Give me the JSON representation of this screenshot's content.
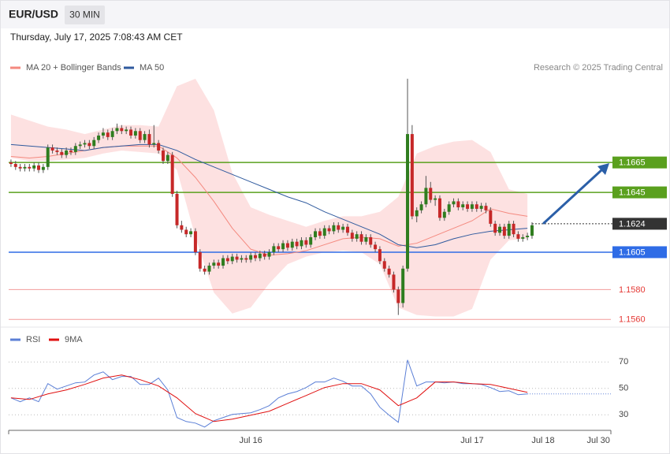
{
  "header": {
    "symbol": "EUR/USD",
    "interval": "30 MIN",
    "timestamp": "Thursday, July 17, 2025 7:08:43 AM CET",
    "source": "Research © 2025 Trading Central"
  },
  "chart_data": [
    {
      "type": "candlestick",
      "xlim": [
        -0.5,
        130.1
      ],
      "ylim": [
        1.1557,
        1.1722
      ],
      "up_color": "#2f7d1f",
      "down_color": "#c62828",
      "ohlc": [
        [
          1.1665,
          1.1667,
          1.1662,
          1.1664
        ],
        [
          1.1664,
          1.1666,
          1.166,
          1.1662
        ],
        [
          1.1662,
          1.1664,
          1.1659,
          1.1661
        ],
        [
          1.1661,
          1.1664,
          1.1659,
          1.1662
        ],
        [
          1.1662,
          1.1664,
          1.1659,
          1.1661
        ],
        [
          1.1661,
          1.1665,
          1.1659,
          1.1663
        ],
        [
          1.1663,
          1.1665,
          1.1658,
          1.166
        ],
        [
          1.166,
          1.1664,
          1.1658,
          1.1662
        ],
        [
          1.1662,
          1.1677,
          1.166,
          1.1675
        ],
        [
          1.1675,
          1.1677,
          1.1671,
          1.1673
        ],
        [
          1.1673,
          1.1675,
          1.167,
          1.1672
        ],
        [
          1.1672,
          1.1674,
          1.1668,
          1.167
        ],
        [
          1.167,
          1.1675,
          1.1668,
          1.1673
        ],
        [
          1.1673,
          1.1675,
          1.167,
          1.1672
        ],
        [
          1.1672,
          1.1678,
          1.167,
          1.1676
        ],
        [
          1.1676,
          1.1679,
          1.1674,
          1.1677
        ],
        [
          1.1677,
          1.168,
          1.1675,
          1.1678
        ],
        [
          1.1678,
          1.168,
          1.1674,
          1.1676
        ],
        [
          1.1676,
          1.1682,
          1.1674,
          1.168
        ],
        [
          1.168,
          1.1685,
          1.1678,
          1.1683
        ],
        [
          1.1683,
          1.1688,
          1.1681,
          1.1685
        ],
        [
          1.1685,
          1.1687,
          1.168,
          1.1682
        ],
        [
          1.1682,
          1.1688,
          1.168,
          1.1686
        ],
        [
          1.1686,
          1.1691,
          1.1684,
          1.1688
        ],
        [
          1.1688,
          1.169,
          1.1684,
          1.1686
        ],
        [
          1.1686,
          1.1689,
          1.1684,
          1.1687
        ],
        [
          1.1687,
          1.1689,
          1.1681,
          1.1683
        ],
        [
          1.1683,
          1.1688,
          1.1681,
          1.1686
        ],
        [
          1.1686,
          1.1688,
          1.1678,
          1.168
        ],
        [
          1.168,
          1.1686,
          1.1678,
          1.1684
        ],
        [
          1.1684,
          1.1687,
          1.1675,
          1.1677
        ],
        [
          1.1677,
          1.169,
          1.1675,
          1.1678
        ],
        [
          1.1678,
          1.168,
          1.1671,
          1.1673
        ],
        [
          1.1673,
          1.1675,
          1.1664,
          1.1666
        ],
        [
          1.1666,
          1.1672,
          1.1664,
          1.167
        ],
        [
          1.167,
          1.1672,
          1.1642,
          1.1644
        ],
        [
          1.1644,
          1.1646,
          1.1621,
          1.1623
        ],
        [
          1.1623,
          1.1626,
          1.1618,
          1.162
        ],
        [
          1.162,
          1.1622,
          1.1615,
          1.1617
        ],
        [
          1.1617,
          1.1621,
          1.1615,
          1.1619
        ],
        [
          1.1619,
          1.1621,
          1.1603,
          1.1605
        ],
        [
          1.1605,
          1.1607,
          1.1592,
          1.1594
        ],
        [
          1.1594,
          1.1596,
          1.159,
          1.1592
        ],
        [
          1.1592,
          1.1598,
          1.159,
          1.1596
        ],
        [
          1.1596,
          1.16,
          1.1594,
          1.1598
        ],
        [
          1.1598,
          1.16,
          1.1594,
          1.1596
        ],
        [
          1.1596,
          1.1603,
          1.1594,
          1.1601
        ],
        [
          1.1601,
          1.1603,
          1.1597,
          1.1599
        ],
        [
          1.1599,
          1.1604,
          1.1597,
          1.1602
        ],
        [
          1.1602,
          1.1604,
          1.1598,
          1.16
        ],
        [
          1.16,
          1.1603,
          1.1598,
          1.1601
        ],
        [
          1.1601,
          1.1603,
          1.1598,
          1.16
        ],
        [
          1.16,
          1.1605,
          1.1598,
          1.1603
        ],
        [
          1.1603,
          1.1605,
          1.1599,
          1.1601
        ],
        [
          1.1601,
          1.1606,
          1.1599,
          1.1604
        ],
        [
          1.1604,
          1.1606,
          1.16,
          1.1602
        ],
        [
          1.1602,
          1.1607,
          1.16,
          1.1605
        ],
        [
          1.1605,
          1.1611,
          1.1603,
          1.1609
        ],
        [
          1.1609,
          1.1611,
          1.1605,
          1.1607
        ],
        [
          1.1607,
          1.1613,
          1.1605,
          1.1611
        ],
        [
          1.1611,
          1.1613,
          1.1606,
          1.1608
        ],
        [
          1.1608,
          1.1614,
          1.1606,
          1.1612
        ],
        [
          1.1612,
          1.1614,
          1.1607,
          1.1609
        ],
        [
          1.1609,
          1.1615,
          1.1607,
          1.1613
        ],
        [
          1.1613,
          1.1615,
          1.1608,
          1.161
        ],
        [
          1.161,
          1.1617,
          1.1608,
          1.1615
        ],
        [
          1.1615,
          1.1621,
          1.1613,
          1.1619
        ],
        [
          1.1619,
          1.1621,
          1.1614,
          1.1616
        ],
        [
          1.1616,
          1.1623,
          1.1614,
          1.1621
        ],
        [
          1.1621,
          1.1623,
          1.1617,
          1.1619
        ],
        [
          1.1619,
          1.1625,
          1.1617,
          1.1623
        ],
        [
          1.1623,
          1.1625,
          1.1618,
          1.162
        ],
        [
          1.162,
          1.1624,
          1.1618,
          1.1622
        ],
        [
          1.1622,
          1.1624,
          1.1616,
          1.1618
        ],
        [
          1.1618,
          1.162,
          1.1612,
          1.1614
        ],
        [
          1.1614,
          1.1619,
          1.1612,
          1.1617
        ],
        [
          1.1617,
          1.1619,
          1.161,
          1.1612
        ],
        [
          1.1612,
          1.1617,
          1.161,
          1.1615
        ],
        [
          1.1615,
          1.1617,
          1.1608,
          1.161
        ],
        [
          1.161,
          1.1612,
          1.1605,
          1.1607
        ],
        [
          1.1607,
          1.1609,
          1.1597,
          1.1599
        ],
        [
          1.1599,
          1.1601,
          1.1592,
          1.1594
        ],
        [
          1.1594,
          1.1596,
          1.1588,
          1.159
        ],
        [
          1.159,
          1.1592,
          1.1578,
          1.158
        ],
        [
          1.158,
          1.1582,
          1.1563,
          1.1571
        ],
        [
          1.1571,
          1.1596,
          1.1568,
          1.1594
        ],
        [
          1.1594,
          1.1721,
          1.1592,
          1.1684
        ],
        [
          1.1684,
          1.169,
          1.1627,
          1.1629
        ],
        [
          1.1629,
          1.1635,
          1.1625,
          1.1633
        ],
        [
          1.1633,
          1.1639,
          1.1631,
          1.1637
        ],
        [
          1.1637,
          1.1656,
          1.1635,
          1.1648
        ],
        [
          1.1648,
          1.1652,
          1.1638,
          1.164
        ],
        [
          1.164,
          1.1643,
          1.1636,
          1.1641
        ],
        [
          1.1641,
          1.1643,
          1.1626,
          1.1628
        ],
        [
          1.1628,
          1.1634,
          1.1626,
          1.1632
        ],
        [
          1.1632,
          1.1639,
          1.163,
          1.1637
        ],
        [
          1.1637,
          1.1641,
          1.1635,
          1.1639
        ],
        [
          1.1639,
          1.1641,
          1.1633,
          1.1635
        ],
        [
          1.1635,
          1.1639,
          1.1633,
          1.1637
        ],
        [
          1.1637,
          1.1639,
          1.1632,
          1.1634
        ],
        [
          1.1634,
          1.1639,
          1.1632,
          1.1637
        ],
        [
          1.1637,
          1.1639,
          1.1632,
          1.1634
        ],
        [
          1.1634,
          1.1638,
          1.1632,
          1.1636
        ],
        [
          1.1636,
          1.1638,
          1.1631,
          1.1633
        ],
        [
          1.1633,
          1.1635,
          1.1622,
          1.1624
        ],
        [
          1.1624,
          1.1626,
          1.1616,
          1.1618
        ],
        [
          1.1618,
          1.1624,
          1.1616,
          1.1622
        ],
        [
          1.1622,
          1.1624,
          1.1614,
          1.1616
        ],
        [
          1.1616,
          1.1626,
          1.1614,
          1.1624
        ],
        [
          1.1624,
          1.1626,
          1.1615,
          1.1617
        ],
        [
          1.1617,
          1.1619,
          1.1612,
          1.1614
        ],
        [
          1.1614,
          1.1617,
          1.1612,
          1.1615
        ],
        [
          1.1615,
          1.1618,
          1.1613,
          1.1616
        ],
        [
          1.1616,
          1.1625,
          1.1614,
          1.1623
        ]
      ],
      "x": [
        0,
        4,
        8,
        12,
        16,
        20,
        24,
        28,
        32,
        36,
        40,
        44,
        48,
        52,
        56,
        60,
        64,
        68,
        72,
        76,
        80,
        84,
        88,
        92,
        96,
        100,
        104,
        108,
        112
      ],
      "band_color": "#fdd9d9",
      "series": [
        {
          "name": "MA 20 + Bollinger Bands",
          "color": "#f4897f",
          "values": [
            1.1669,
            1.1668,
            1.1669,
            1.1671,
            1.1673,
            1.1675,
            1.1676,
            1.1676,
            1.1676,
            1.1668,
            1.1655,
            1.1639,
            1.1621,
            1.1607,
            1.1603,
            1.1604,
            1.1606,
            1.161,
            1.1614,
            1.1615,
            1.1614,
            1.1609,
            1.1611,
            1.1616,
            1.1621,
            1.1626,
            1.1634,
            1.1631,
            1.1629
          ],
          "upper": [
            1.1697,
            1.1693,
            1.1689,
            1.1687,
            1.1684,
            1.1687,
            1.169,
            1.169,
            1.1689,
            1.1716,
            1.1721,
            1.17,
            1.1658,
            1.1635,
            1.163,
            1.1626,
            1.1622,
            1.1626,
            1.1629,
            1.1629,
            1.1632,
            1.1642,
            1.1671,
            1.1676,
            1.1679,
            1.168,
            1.1672,
            1.1647,
            1.1644
          ],
          "lower": [
            1.1668,
            1.1666,
            1.1666,
            1.1667,
            1.1668,
            1.1671,
            1.1673,
            1.1672,
            1.1671,
            1.166,
            1.1615,
            1.1578,
            1.1564,
            1.1568,
            1.1584,
            1.1597,
            1.1602,
            1.1605,
            1.1606,
            1.1605,
            1.1597,
            1.1568,
            1.1563,
            1.1562,
            1.1562,
            1.1567,
            1.16,
            1.1613,
            1.1614
          ]
        },
        {
          "name": "MA 50",
          "color": "#2f5a9e",
          "values": [
            1.1677,
            1.1676,
            1.1675,
            1.1674,
            1.1673,
            1.1675,
            1.1676,
            1.1677,
            1.1677,
            1.1673,
            1.1667,
            1.1662,
            1.1657,
            1.1652,
            1.1647,
            1.1642,
            1.1638,
            1.1632,
            1.1627,
            1.1622,
            1.1617,
            1.161,
            1.1608,
            1.161,
            1.1614,
            1.1617,
            1.1619,
            1.162,
            1.1621
          ]
        }
      ],
      "levels": [
        {
          "value": 1.1665,
          "color": "#5aa01e",
          "box": true
        },
        {
          "value": 1.1645,
          "color": "#5aa01e",
          "box": true
        },
        {
          "value": 1.1624,
          "color": "#333333",
          "box": true,
          "style": "dotted"
        },
        {
          "value": 1.1605,
          "color": "#2f6ce6",
          "box": true
        },
        {
          "value": 1.158,
          "label": "1.1580",
          "color": "#e53935",
          "box": false
        },
        {
          "value": 1.156,
          "label": "1.1560",
          "color": "#e53935",
          "box": false
        }
      ]
    },
    {
      "type": "line",
      "xlim": [
        -0.5,
        130.1
      ],
      "ylim": [
        20,
        94
      ],
      "yticks": [
        30,
        50,
        70
      ],
      "grid": true,
      "xticks": [
        {
          "value": 52,
          "label": "Jul 16"
        },
        {
          "value": 100,
          "label": "Jul 17"
        },
        {
          "value": 115.4,
          "label": "Jul 18"
        },
        {
          "value": 127.4,
          "label": "Jul 30"
        }
      ],
      "series": [
        {
          "name": "RSI",
          "color": "#5b7fd6",
          "x": [
            0,
            2,
            4,
            6,
            8,
            10,
            12,
            14,
            16,
            18,
            20,
            22,
            24,
            26,
            28,
            30,
            32,
            34,
            36,
            38,
            40,
            42,
            44,
            46,
            48,
            50,
            52,
            54,
            56,
            58,
            60,
            62,
            64,
            66,
            68,
            70,
            72,
            74,
            76,
            78,
            80,
            82,
            84,
            86,
            88,
            90,
            92,
            94,
            96,
            98,
            100,
            102,
            104,
            106,
            108,
            110,
            112
          ],
          "values": [
            42.8,
            39.9,
            42.8,
            39.9,
            53.6,
            49.4,
            51.8,
            54.2,
            54.8,
            60.1,
            62.5,
            56.6,
            59,
            59,
            53,
            53,
            57.8,
            48.8,
            27.9,
            24.9,
            23.7,
            20.7,
            25.5,
            27.9,
            30.3,
            30.9,
            31.5,
            33.9,
            36.9,
            42.8,
            45.8,
            47.6,
            50.6,
            54.8,
            54.8,
            57.8,
            55.4,
            51.8,
            51.8,
            45.8,
            35.7,
            29.7,
            24.3,
            71.5,
            51.8,
            54.8,
            54.8,
            54.2,
            54.8,
            53.6,
            53.6,
            53,
            50.6,
            47.6,
            48.2,
            45.2,
            45.8
          ]
        },
        {
          "name": "9MA",
          "color": "#e01010",
          "x": [
            0,
            4,
            8,
            12,
            16,
            20,
            24,
            28,
            32,
            36,
            40,
            44,
            48,
            52,
            56,
            60,
            64,
            68,
            72,
            76,
            80,
            84,
            88,
            92,
            96,
            100,
            104,
            108,
            112
          ],
          "values": [
            42.8,
            41.6,
            45.8,
            48.8,
            53,
            57.8,
            60.1,
            56.6,
            51.8,
            42.8,
            30.9,
            24.9,
            26.7,
            29.7,
            32.7,
            38.7,
            44.6,
            50.6,
            53.6,
            53.6,
            48.8,
            36.9,
            42.8,
            54.8,
            54.8,
            53.6,
            53,
            50,
            47
          ]
        }
      ]
    }
  ]
}
